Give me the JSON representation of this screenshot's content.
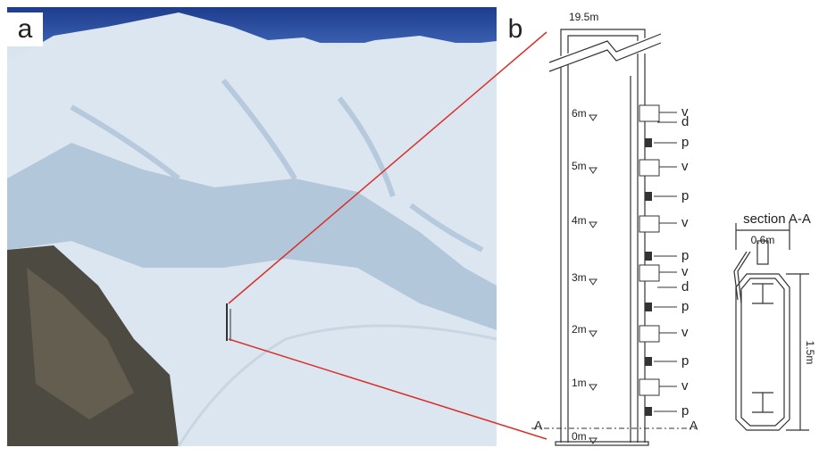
{
  "panels": {
    "a": {
      "label": "a"
    },
    "b": {
      "label": "b",
      "top_height": "19.5m",
      "heights": [
        "6m",
        "5m",
        "4m",
        "3m",
        "2m",
        "1m",
        "0m"
      ],
      "sensors": [
        "v",
        "d",
        "p",
        "v",
        "p",
        "v",
        "p",
        "v",
        "d",
        "p",
        "v",
        "p",
        "v",
        "p"
      ],
      "section_marker": "A"
    }
  },
  "section": {
    "title": "section A-A",
    "width": "0.6m",
    "height": "1.5m"
  }
}
